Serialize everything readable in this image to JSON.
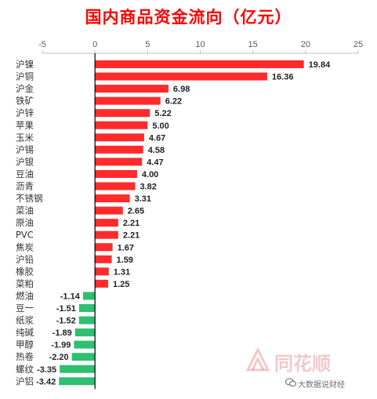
{
  "chart_data": {
    "type": "bar",
    "orientation": "horizontal",
    "title": "国内商品资金流向（亿元）",
    "categories": [
      "沪镍",
      "沪铜",
      "沪金",
      "铁矿",
      "沪锌",
      "苹果",
      "玉米",
      "沪锡",
      "沪银",
      "豆油",
      "沥青",
      "不锈钢",
      "菜油",
      "原油",
      "PVC",
      "焦炭",
      "沪铅",
      "橡胶",
      "菜粕",
      "燃油",
      "豆一",
      "纸浆",
      "纯碱",
      "甲醇",
      "热卷",
      "螺纹",
      "沪铝"
    ],
    "values": [
      19.84,
      16.36,
      6.98,
      6.22,
      5.22,
      5.0,
      4.67,
      4.58,
      4.47,
      4.0,
      3.82,
      3.31,
      2.65,
      2.21,
      2.21,
      1.67,
      1.59,
      1.31,
      1.25,
      -1.14,
      -1.51,
      -1.52,
      -1.89,
      -1.99,
      -2.2,
      -3.35,
      -3.42
    ],
    "value_labels": [
      "19.84",
      "16.36",
      "6.98",
      "6.22",
      "5.22",
      "5.00",
      "4.67",
      "4.58",
      "4.47",
      "4.00",
      "3.82",
      "3.31",
      "2.65",
      "2.21",
      "2.21",
      "1.67",
      "1.59",
      "1.31",
      "1.25",
      "-1.14",
      "-1.51",
      "-1.52",
      "-1.89",
      "-1.99",
      "-2.20",
      "-3.35",
      "-3.42"
    ],
    "xlim": [
      -5,
      25
    ],
    "xticks": [
      -5,
      0,
      5,
      10,
      15,
      20,
      25
    ],
    "xtick_labels": [
      "-5",
      "0",
      "5",
      "10",
      "15",
      "20",
      "25"
    ],
    "axis_position": "top",
    "grid": false,
    "legend": "none",
    "colors": {
      "positive": "#ff2b2b",
      "negative": "#2fbf71",
      "title": "#ff0000"
    }
  },
  "watermark": {
    "brand": "同花顺",
    "account": "大数据说财经",
    "logo_icon": "flush-logo-icon",
    "wechat_icon": "wechat-icon"
  }
}
